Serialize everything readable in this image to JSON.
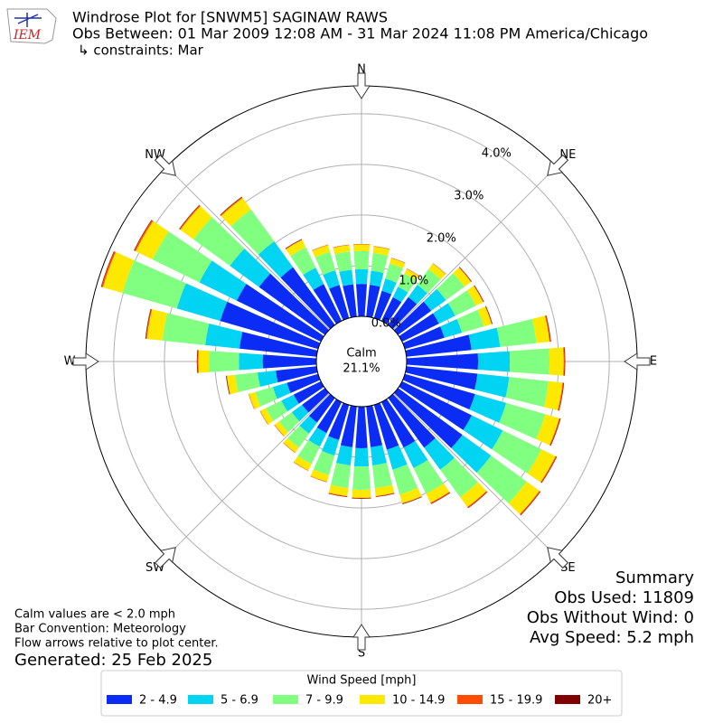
{
  "chart_data": {
    "type": "windrose",
    "logo_text": "IEM",
    "title": "Windrose Plot for [SNWM5] SAGINAW RAWS",
    "subtitle": "Obs Between: 01 Mar 2009 12:08 AM - 31 Mar 2024 11:08 PM America/Chicago",
    "constraints": "↳ constraints: Mar",
    "direction_labels": [
      "N",
      "NE",
      "E",
      "SE",
      "S",
      "SW",
      "W",
      "NW"
    ],
    "directions": [
      0,
      10,
      20,
      30,
      40,
      50,
      60,
      70,
      80,
      90,
      100,
      110,
      120,
      130,
      140,
      150,
      160,
      170,
      180,
      190,
      200,
      210,
      220,
      230,
      240,
      250,
      260,
      270,
      280,
      290,
      300,
      310,
      320,
      330,
      340,
      350
    ],
    "rlim": [
      0,
      4.55
    ],
    "rticks": [
      {
        "value": 0,
        "label": "0.0%"
      },
      {
        "value": 1,
        "label": "1.0%"
      },
      {
        "value": 2,
        "label": "2.0%"
      },
      {
        "value": 3,
        "label": "3.0%"
      },
      {
        "value": 4,
        "label": "4.0%"
      }
    ],
    "calm_label": "Calm",
    "calm_value": 21.1,
    "calm_value_label": "21.1%",
    "legend_title": "Wind Speed [mph]",
    "series": [
      {
        "name": "2 - 4.9",
        "color": "#0a2cf5",
        "values": [
          0.64,
          0.63,
          0.56,
          0.52,
          0.68,
          0.81,
          0.81,
          0.81,
          1.29,
          1.41,
          1.41,
          1.44,
          1.53,
          1.57,
          1.21,
          1.0,
          0.92,
          0.81,
          0.82,
          0.81,
          0.72,
          0.68,
          0.6,
          0.56,
          0.6,
          0.64,
          0.81,
          1.06,
          1.53,
          2.01,
          1.85,
          1.61,
          1.41,
          0.81,
          0.68,
          0.64
        ]
      },
      {
        "name": "5 - 6.9",
        "color": "#00d4f2",
        "values": [
          0.29,
          0.28,
          0.25,
          0.23,
          0.3,
          0.36,
          0.36,
          0.36,
          0.57,
          0.63,
          0.63,
          0.64,
          0.68,
          0.7,
          0.54,
          0.45,
          0.41,
          0.36,
          0.36,
          0.36,
          0.32,
          0.3,
          0.27,
          0.25,
          0.27,
          0.29,
          0.36,
          0.47,
          0.68,
          0.89,
          0.82,
          0.71,
          0.63,
          0.36,
          0.3,
          0.29
        ]
      },
      {
        "name": "7 - 9.9",
        "color": "#80ff80",
        "values": [
          0.36,
          0.35,
          0.31,
          0.29,
          0.38,
          0.45,
          0.45,
          0.45,
          0.72,
          0.78,
          0.78,
          0.8,
          0.85,
          0.87,
          0.67,
          0.56,
          0.51,
          0.45,
          0.46,
          0.45,
          0.4,
          0.38,
          0.34,
          0.31,
          0.34,
          0.36,
          0.45,
          0.59,
          0.85,
          1.12,
          1.03,
          0.89,
          0.78,
          0.45,
          0.38,
          0.36
        ]
      },
      {
        "name": "10 - 14.9",
        "color": "#ffe800",
        "values": [
          0.13,
          0.13,
          0.11,
          0.1,
          0.14,
          0.16,
          0.16,
          0.16,
          0.26,
          0.28,
          0.28,
          0.29,
          0.31,
          0.31,
          0.24,
          0.2,
          0.18,
          0.16,
          0.16,
          0.16,
          0.14,
          0.14,
          0.12,
          0.11,
          0.12,
          0.13,
          0.16,
          0.21,
          0.31,
          0.4,
          0.37,
          0.32,
          0.28,
          0.16,
          0.14,
          0.13
        ]
      },
      {
        "name": "15 - 19.9",
        "color": "#ff4c00",
        "values": [
          0.01,
          0.01,
          0.01,
          0.01,
          0.01,
          0.01,
          0.01,
          0.01,
          0.02,
          0.02,
          0.02,
          0.02,
          0.02,
          0.02,
          0.02,
          0.02,
          0.01,
          0.01,
          0.01,
          0.01,
          0.01,
          0.01,
          0.01,
          0.01,
          0.01,
          0.01,
          0.01,
          0.02,
          0.02,
          0.03,
          0.03,
          0.02,
          0.02,
          0.01,
          0.01,
          0.01
        ]
      },
      {
        "name": "20+",
        "color": "#800000",
        "values": [
          0,
          0,
          0,
          0,
          0,
          0.01,
          0.01,
          0.01,
          0.01,
          0.01,
          0.01,
          0.01,
          0.01,
          0.01,
          0.01,
          0.01,
          0.01,
          0.01,
          0.01,
          0.01,
          0,
          0,
          0,
          0,
          0,
          0,
          0.01,
          0.01,
          0.01,
          0.01,
          0.01,
          0.01,
          0.01,
          0.01,
          0,
          0
        ]
      }
    ],
    "notes": [
      "Calm values are < 2.0 mph",
      "Bar Convention: Meteorology",
      "Flow arrows relative to plot center."
    ],
    "generated": "Generated: 25 Feb 2025",
    "summary": [
      "Summary",
      "Obs Used: 11809",
      "Obs Without Wind: 0",
      "Avg Speed: 5.2 mph"
    ]
  }
}
